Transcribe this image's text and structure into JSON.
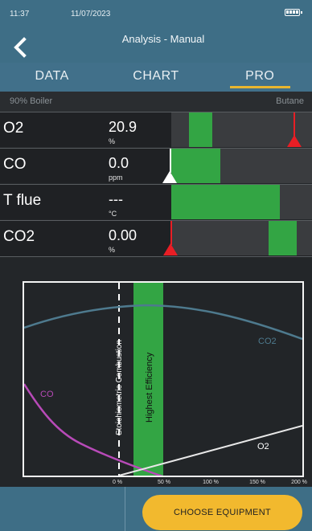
{
  "status": {
    "time": "11:37",
    "date": "11/07/2023"
  },
  "header": {
    "title": "Analysis - Manual"
  },
  "tabs": [
    {
      "label": "DATA",
      "active": false
    },
    {
      "label": "CHART",
      "active": false
    },
    {
      "label": "PRO",
      "active": true
    }
  ],
  "info": {
    "appliance": "90% Boiler",
    "fuel": "Butane"
  },
  "readings": [
    {
      "label": "O2",
      "value": "20.9",
      "unit": "%"
    },
    {
      "label": "CO",
      "value": "0.0",
      "unit": "ppm"
    },
    {
      "label": "T flue",
      "value": "---",
      "unit": "°C"
    },
    {
      "label": "CO2",
      "value": "0.00",
      "unit": "%"
    }
  ],
  "chart": {
    "stoich_label": "Stoichiometric Combustion",
    "efficiency_label": "Highest Efficiency",
    "co2_label": "CO2",
    "co_label": "CO",
    "o2_label": "O2",
    "x_ticks": [
      "0 %",
      "50 %",
      "100 %",
      "150 %",
      "200 %"
    ]
  },
  "colors": {
    "header": "#3e6e86",
    "accent": "#e8b62e",
    "green": "#33a544",
    "marker_red": "#e81e25",
    "co2_curve": "#4e7a8e",
    "co_curve": "#b84ab8"
  },
  "footer": {
    "choose_label": "CHOOSE EQUIPMENT"
  }
}
